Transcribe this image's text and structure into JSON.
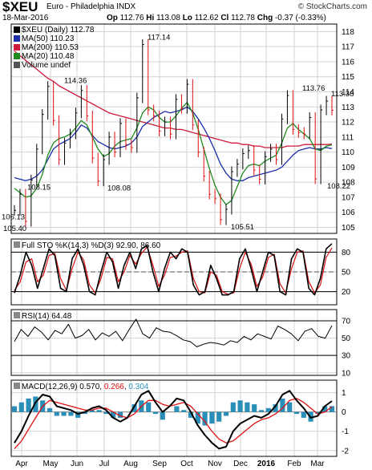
{
  "header": {
    "symbol": "$XEU",
    "name": "Euro - Philadelphia INDX",
    "brand": "© StockCharts.com",
    "date": "18-Mar-2016",
    "open_label": "Op",
    "open": "112.76",
    "high_label": "Hi",
    "high": "113.08",
    "low_label": "Lo",
    "low": "112.62",
    "close_label": "Cl",
    "close": "112.78",
    "chg_label": "Chg",
    "chg": "-0.37 (-0.33%)"
  },
  "legend": {
    "price": "$XEU (Daily) 112.78",
    "ma50": "MA(50) 110.23",
    "ma200": "MA(200) 110.53",
    "ma20": "MA(20) 110.48",
    "volume": "Volume undef"
  },
  "colors": {
    "price": "#000000",
    "ma50": "#1c2ea8",
    "ma200": "#cc1a3c",
    "ma20": "#1f8a1f",
    "stoch_k": "#000000",
    "stoch_d": "#dd1111",
    "rsi": "#000000",
    "macd": "#000000",
    "signal": "#dd1111",
    "histogram": "#2a8fb8",
    "grid": "#d3d3d3"
  },
  "annotations": [
    "106.13",
    "105.40",
    "108.15",
    "114.36",
    "108.08",
    "117.14",
    "105.51",
    "113.76",
    "113.38",
    "108.22"
  ],
  "x_labels": [
    "Apr",
    "May",
    "Jun",
    "Jul",
    "Aug",
    "Sep",
    "Oct",
    "Nov",
    "Dec",
    "2016",
    "Feb",
    "Mar"
  ],
  "chart_data": [
    {
      "type": "line",
      "title": "$XEU Euro - Philadelphia INDX",
      "chart_style": "HLC bars",
      "ylim": [
        104.6,
        118.5
      ],
      "y_ticks": [
        105,
        106,
        107,
        108,
        109,
        110,
        111,
        112,
        113,
        114,
        115,
        116,
        117,
        118
      ],
      "grid": true,
      "legend_position": "top-left",
      "series": [
        {
          "name": "$XEU (Daily)",
          "values": [
            106.13,
            107.2,
            105.4,
            108.15,
            110.2,
            112.5,
            114.36,
            112.1,
            109.5,
            110.6,
            111.2,
            112.6,
            114.1,
            112.4,
            109.6,
            108.08,
            109.5,
            111.0,
            110.0,
            111.9,
            110.5,
            110.3,
            113.6,
            117.14,
            112.8,
            112.4,
            111.4,
            112.0,
            111.2,
            113.5,
            112.9,
            114.5,
            111.8,
            110.0,
            108.4,
            107.2,
            106.9,
            105.51,
            106.2,
            108.7,
            109.2,
            109.9,
            110.1,
            108.8,
            108.2,
            109.7,
            110.2,
            109.5,
            112.2,
            113.76,
            111.5,
            111.3,
            111.2,
            112.3,
            108.22,
            112.8,
            113.38,
            112.78
          ]
        },
        {
          "name": "MA(50)",
          "values": [
            108.3,
            108.2,
            108.1,
            108.2,
            108.4,
            108.8,
            109.5,
            110.2,
            110.5,
            110.7,
            110.9,
            111.3,
            111.8,
            111.6,
            111.1,
            110.7,
            110.5,
            110.3,
            110.2,
            110.3,
            110.4,
            110.6,
            111.0,
            111.7,
            112.0,
            112.3,
            112.5,
            112.7,
            112.6,
            112.7,
            112.8,
            113.0,
            112.7,
            112.2,
            111.6,
            110.9,
            110.1,
            109.2,
            108.6,
            108.2,
            108.1,
            108.1,
            108.3,
            108.4,
            108.5,
            108.6,
            108.7,
            108.8,
            109.0,
            109.4,
            109.8,
            110.1,
            110.2,
            110.3,
            110.2,
            110.2,
            110.3,
            110.23
          ]
        },
        {
          "name": "MA(200)",
          "values": [
            116.7,
            116.4,
            116.1,
            115.8,
            115.5,
            115.2,
            114.9,
            114.7,
            114.4,
            114.2,
            114.0,
            113.8,
            113.6,
            113.4,
            113.2,
            113.0,
            112.8,
            112.6,
            112.5,
            112.4,
            112.3,
            112.2,
            112.1,
            112.0,
            111.9,
            111.8,
            111.7,
            111.6,
            111.6,
            111.5,
            111.5,
            111.4,
            111.3,
            111.2,
            111.1,
            111.0,
            110.9,
            110.8,
            110.7,
            110.6,
            110.6,
            110.5,
            110.5,
            110.4,
            110.4,
            110.3,
            110.3,
            110.3,
            110.3,
            110.4,
            110.4,
            110.4,
            110.5,
            110.5,
            110.5,
            110.5,
            110.5,
            110.53
          ]
        },
        {
          "name": "MA(20)",
          "values": [
            107.6,
            107.3,
            107.0,
            107.1,
            107.6,
            108.5,
            109.8,
            110.6,
            110.9,
            111.0,
            111.2,
            111.6,
            112.1,
            111.8,
            111.0,
            110.2,
            109.7,
            109.9,
            110.4,
            110.7,
            110.8,
            110.9,
            111.6,
            112.6,
            113.0,
            112.8,
            112.3,
            112.0,
            112.0,
            112.4,
            112.9,
            113.3,
            112.6,
            111.5,
            110.2,
            108.9,
            107.8,
            107.0,
            106.5,
            106.8,
            107.7,
            108.6,
            109.1,
            109.2,
            109.1,
            109.4,
            109.6,
            109.8,
            110.6,
            111.6,
            111.9,
            111.5,
            111.2,
            110.9,
            110.2,
            110.1,
            110.4,
            110.48
          ]
        }
      ]
    },
    {
      "type": "line",
      "title": "Full STO %K(14,3) %D(3) 92.90, 86.60",
      "ylim": [
        0,
        100
      ],
      "y_ticks": [
        20,
        50,
        80
      ],
      "series": [
        {
          "name": "%K",
          "values": [
            18,
            45,
            80,
            60,
            25,
            55,
            85,
            75,
            25,
            20,
            70,
            85,
            60,
            20,
            15,
            50,
            80,
            65,
            25,
            60,
            80,
            55,
            85,
            90,
            50,
            20,
            55,
            80,
            70,
            85,
            80,
            30,
            15,
            20,
            60,
            40,
            15,
            15,
            20,
            70,
            85,
            55,
            20,
            50,
            80,
            75,
            20,
            15,
            70,
            85,
            80,
            25,
            15,
            40,
            85,
            92.9
          ]
        },
        {
          "name": "%D",
          "values": [
            22,
            35,
            65,
            70,
            35,
            45,
            75,
            78,
            40,
            22,
            55,
            80,
            68,
            30,
            18,
            40,
            72,
            70,
            35,
            50,
            75,
            62,
            78,
            88,
            60,
            28,
            45,
            72,
            74,
            80,
            82,
            40,
            20,
            18,
            50,
            45,
            20,
            16,
            18,
            55,
            80,
            62,
            28,
            42,
            72,
            77,
            32,
            18,
            55,
            80,
            82,
            35,
            18,
            30,
            72,
            86.6
          ]
        }
      ]
    },
    {
      "type": "line",
      "title": "RSI(14) 64.48",
      "ylim": [
        7,
        83
      ],
      "y_ticks": [
        10,
        30,
        50,
        70
      ],
      "series": [
        {
          "name": "RSI(14)",
          "values": [
            46,
            60,
            52,
            63,
            57,
            48,
            59,
            55,
            66,
            50,
            53,
            60,
            48,
            56,
            52,
            58,
            47,
            60,
            72,
            55,
            50,
            62,
            58,
            57,
            53,
            48,
            46,
            40,
            43,
            45,
            44,
            42,
            47,
            45,
            52,
            48,
            55,
            52,
            49,
            64,
            60,
            55,
            47,
            58,
            61,
            52,
            50,
            64.48
          ]
        }
      ]
    },
    {
      "type": "line",
      "title": "MACD(12,26,9) 0.570, 0.266, 0.304",
      "ylim": [
        -2.3,
        1.65
      ],
      "y_ticks": [
        -2,
        -1,
        0,
        1
      ],
      "series": [
        {
          "name": "MACD",
          "values": [
            -1.6,
            -1.0,
            -0.2,
            0.5,
            0.9,
            0.8,
            0.3,
            0.2,
            0.1,
            -0.1,
            0.0,
            0.2,
            0.3,
            0.1,
            -0.3,
            -0.5,
            -0.3,
            0.3,
            0.9,
            1.1,
            0.5,
            0.0,
            0.3,
            0.7,
            0.6,
            0.0,
            -0.7,
            -1.2,
            -1.6,
            -1.9,
            -1.8,
            -1.0,
            -0.6,
            -0.4,
            -0.2,
            -0.3,
            -0.1,
            0.3,
            0.9,
            1.1,
            0.6,
            0.2,
            -0.3,
            -0.2,
            0.3,
            0.57
          ]
        },
        {
          "name": "Signal",
          "values": [
            -1.9,
            -1.5,
            -0.9,
            -0.3,
            0.3,
            0.6,
            0.5,
            0.4,
            0.3,
            0.2,
            0.1,
            0.1,
            0.2,
            0.2,
            0.0,
            -0.2,
            -0.3,
            -0.1,
            0.3,
            0.6,
            0.6,
            0.4,
            0.3,
            0.4,
            0.5,
            0.3,
            -0.1,
            -0.5,
            -1.0,
            -1.4,
            -1.6,
            -1.5,
            -1.2,
            -0.9,
            -0.6,
            -0.4,
            -0.3,
            -0.1,
            0.2,
            0.6,
            0.7,
            0.5,
            0.2,
            -0.1,
            0.0,
            0.266
          ]
        },
        {
          "name": "Histogram",
          "values": [
            0.3,
            0.5,
            0.7,
            0.8,
            0.6,
            0.2,
            -0.2,
            -0.2,
            -0.2,
            -0.3,
            -0.1,
            0.1,
            0.1,
            -0.1,
            -0.3,
            -0.3,
            0.0,
            0.4,
            0.6,
            0.5,
            -0.1,
            -0.4,
            0.0,
            0.3,
            0.1,
            -0.3,
            -0.6,
            -0.7,
            -0.6,
            -0.5,
            -0.2,
            0.5,
            0.6,
            0.5,
            0.4,
            0.1,
            0.2,
            0.4,
            0.7,
            0.5,
            -0.1,
            -0.3,
            -0.5,
            -0.1,
            0.3,
            0.304
          ]
        }
      ]
    }
  ]
}
